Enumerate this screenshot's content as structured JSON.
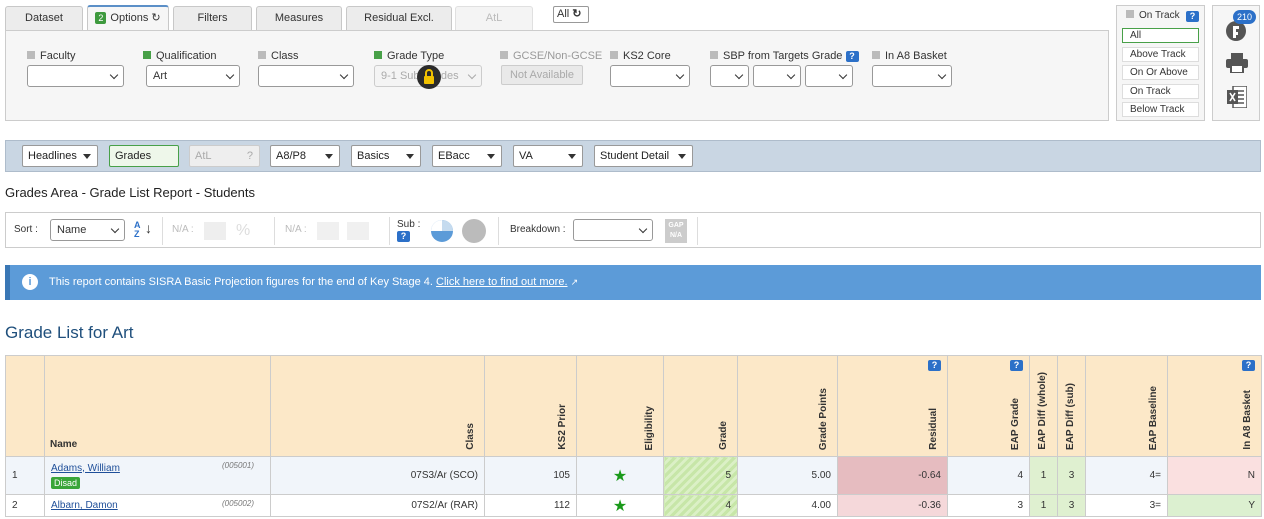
{
  "tabs": [
    {
      "label": "Dataset"
    },
    {
      "label": "Options",
      "badge": "2"
    },
    {
      "label": "Filters"
    },
    {
      "label": "Measures"
    },
    {
      "label": "Residual Excl."
    },
    {
      "label": "AtL"
    }
  ],
  "all_toggle": "All",
  "filters": {
    "faculty": {
      "label": "Faculty",
      "value": ""
    },
    "qualification": {
      "label": "Qualification",
      "value": "Art"
    },
    "class": {
      "label": "Class",
      "value": ""
    },
    "grade_type": {
      "label": "Grade Type",
      "value": "9-1 Sub Grades"
    },
    "gcse": {
      "label": "GCSE/Non-GCSE",
      "value": "Not Available"
    },
    "ks2_core": {
      "label": "KS2 Core",
      "value": ""
    },
    "sbp": {
      "label": "SBP from Targets Grade",
      "help": "?"
    },
    "a8_basket": {
      "label": "In A8 Basket",
      "value": ""
    }
  },
  "track": {
    "title": "On Track",
    "help": "?",
    "options": [
      "All",
      "Above Track",
      "On Or Above",
      "On Track",
      "Below Track"
    ],
    "selected": "All"
  },
  "icons": {
    "notifications_count": "210"
  },
  "nav": [
    "Headlines",
    "Grades",
    "AtL",
    "A8/P8",
    "Basics",
    "EBacc",
    "VA",
    "Student Detail"
  ],
  "nav_atl_help": "?",
  "report_title": "Grades Area - Grade List Report - Students",
  "toolbar": {
    "sort_label": "Sort :",
    "sort_value": "Name",
    "na1": "N/A :",
    "na2": "N/A :",
    "sub_label": "Sub :",
    "sub_help": "?",
    "breakdown_label": "Breakdown :",
    "breakdown_value": "",
    "gap_label": "GAP",
    "gap_sub": "N/A"
  },
  "info": {
    "text": "This report contains SISRA Basic Projection figures for the end of Key Stage 4.",
    "link": "Click here to find out more."
  },
  "list_title": "Grade List for Art",
  "table": {
    "headers": [
      "",
      "Name",
      "Class",
      "KS2 Prior",
      "Eligibility",
      "Grade",
      "Grade Points",
      "Residual",
      "EAP Grade",
      "EAP Diff (whole)",
      "EAP Diff (sub)",
      "EAP Baseline",
      "In A8 Basket"
    ],
    "help": "?",
    "rows": [
      {
        "num": "1",
        "name": "Adams, William",
        "id": "(005001)",
        "tag": "Disad",
        "class": "07S3/Ar (SCO)",
        "ks2": "105",
        "grade": "5",
        "points": "5.00",
        "residual": "-0.64",
        "eap_grade": "4",
        "eap_whole": "1",
        "eap_sub": "3",
        "baseline": "4=",
        "a8": "N"
      },
      {
        "num": "2",
        "name": "Albarn, Damon",
        "id": "(005002)",
        "tag": "",
        "class": "07S2/Ar (RAR)",
        "ks2": "112",
        "grade": "4",
        "points": "4.00",
        "residual": "-0.36",
        "eap_grade": "3",
        "eap_whole": "1",
        "eap_sub": "3",
        "baseline": "3=",
        "a8": "Y"
      }
    ]
  },
  "colors": {
    "accent": "#2c70c8",
    "info_bg": "#5c9bd8",
    "header_bg": "#fce8c8",
    "green": "#48a048"
  }
}
